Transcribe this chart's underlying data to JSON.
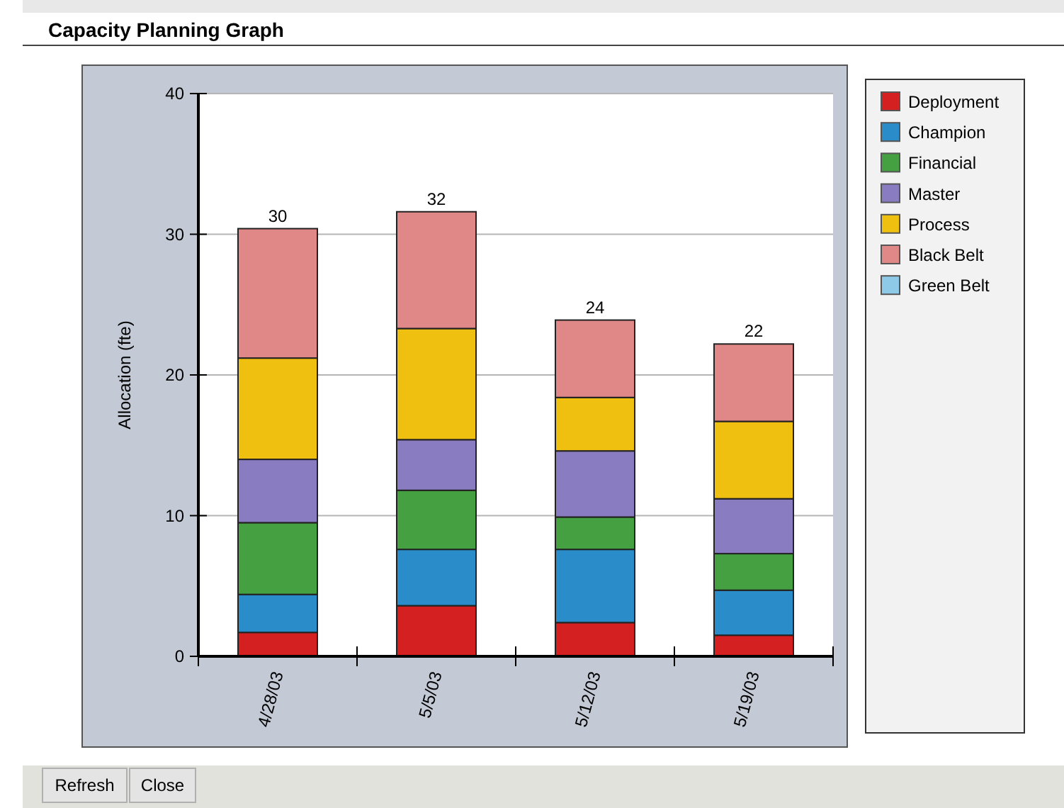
{
  "chart_data": {
    "type": "bar",
    "title": "Capacity Planning Graph",
    "ylabel": "Allocation (fte)",
    "categories": [
      "4/28/03",
      "5/5/03",
      "5/12/03",
      "5/19/03"
    ],
    "stacked": true,
    "ylim": [
      0,
      40
    ],
    "yticks": [
      0,
      10,
      20,
      30,
      40
    ],
    "grid": "y",
    "legend": "right",
    "totals": [
      "30",
      "32",
      "24",
      "22"
    ],
    "annotations": [
      "Refresh",
      "Close"
    ],
    "series": [
      {
        "name": "Deployment",
        "color": "#d42020",
        "values": [
          1.7,
          3.6,
          2.4,
          1.5
        ]
      },
      {
        "name": "Champion",
        "color": "#2a8cc8",
        "values": [
          2.7,
          4.0,
          5.2,
          3.2
        ]
      },
      {
        "name": "Financial",
        "color": "#44a040",
        "values": [
          5.1,
          4.2,
          2.3,
          2.6
        ]
      },
      {
        "name": "Master",
        "color": "#8a7cc0",
        "values": [
          4.5,
          3.6,
          4.7,
          3.9
        ]
      },
      {
        "name": "Process",
        "color": "#f0c010",
        "values": [
          7.2,
          7.9,
          3.8,
          5.5
        ]
      },
      {
        "name": "Black Belt",
        "color": "#e08888",
        "values": [
          9.2,
          8.3,
          5.5,
          5.5
        ]
      },
      {
        "name": "Green Belt",
        "color": "#8ecae8",
        "values": [
          0,
          0,
          0,
          0
        ]
      }
    ]
  }
}
